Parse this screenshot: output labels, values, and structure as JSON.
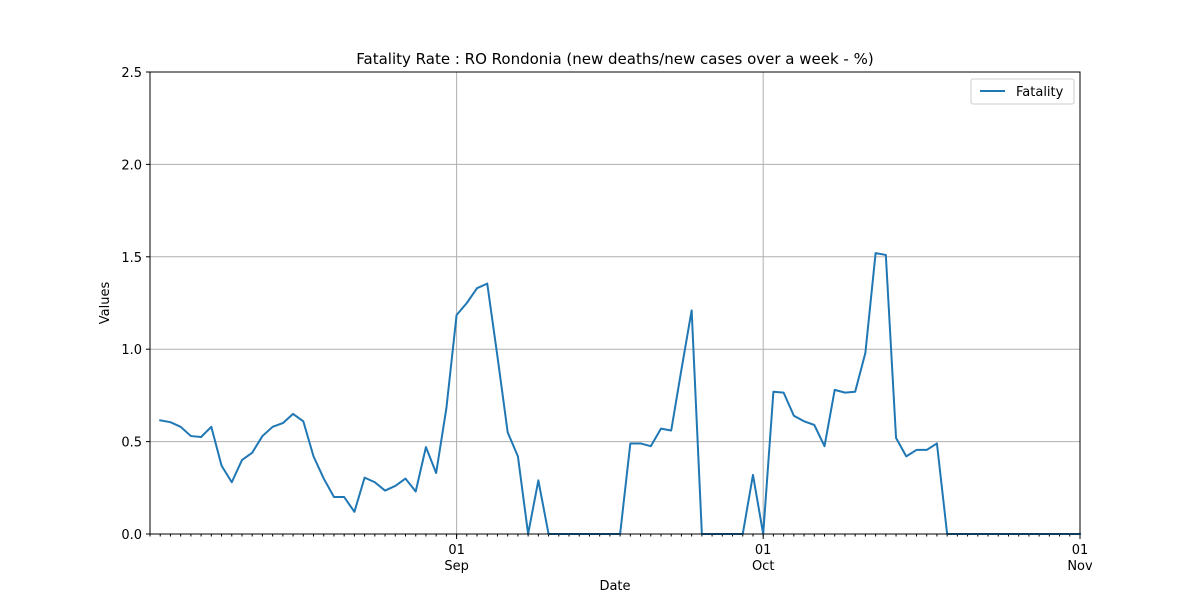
{
  "chart_data": {
    "type": "line",
    "title": "Fatality Rate : RO Rondonia (new deaths/new cases over a week - %)",
    "xlabel": "Date",
    "ylabel": "Values",
    "ylim": [
      0,
      2.5
    ],
    "xlim": [
      "2020-08-02",
      "2020-11-01"
    ],
    "yticks": [
      "0.0",
      "0.5",
      "1.0",
      "1.5",
      "2.0",
      "2.5"
    ],
    "xticks": [
      {
        "date": "2020-09-01",
        "day": "01",
        "month": "Sep"
      },
      {
        "date": "2020-10-01",
        "day": "01",
        "month": "Oct"
      },
      {
        "date": "2020-11-01",
        "day": "01",
        "month": "Nov"
      }
    ],
    "grid": true,
    "legend_position": "top-right",
    "series": [
      {
        "name": "Fatality",
        "color": "#1f77b4",
        "points": [
          [
            "2020-08-03",
            0.615
          ],
          [
            "2020-08-04",
            0.605
          ],
          [
            "2020-08-05",
            0.58
          ],
          [
            "2020-08-06",
            0.53
          ],
          [
            "2020-08-07",
            0.525
          ],
          [
            "2020-08-08",
            0.58
          ],
          [
            "2020-08-09",
            0.37
          ],
          [
            "2020-08-10",
            0.28
          ],
          [
            "2020-08-11",
            0.4
          ],
          [
            "2020-08-12",
            0.44
          ],
          [
            "2020-08-13",
            0.53
          ],
          [
            "2020-08-14",
            0.58
          ],
          [
            "2020-08-15",
            0.6
          ],
          [
            "2020-08-16",
            0.65
          ],
          [
            "2020-08-17",
            0.61
          ],
          [
            "2020-08-18",
            0.42
          ],
          [
            "2020-08-19",
            0.3
          ],
          [
            "2020-08-20",
            0.2
          ],
          [
            "2020-08-21",
            0.2
          ],
          [
            "2020-08-22",
            0.12
          ],
          [
            "2020-08-23",
            0.305
          ],
          [
            "2020-08-24",
            0.28
          ],
          [
            "2020-08-25",
            0.235
          ],
          [
            "2020-08-26",
            0.26
          ],
          [
            "2020-08-27",
            0.3
          ],
          [
            "2020-08-28",
            0.23
          ],
          [
            "2020-08-29",
            0.47
          ],
          [
            "2020-08-30",
            0.33
          ],
          [
            "2020-08-31",
            0.68
          ],
          [
            "2020-09-01",
            1.185
          ],
          [
            "2020-09-02",
            1.25
          ],
          [
            "2020-09-03",
            1.33
          ],
          [
            "2020-09-04",
            1.355
          ],
          [
            "2020-09-05",
            0.96
          ],
          [
            "2020-09-06",
            0.55
          ],
          [
            "2020-09-07",
            0.42
          ],
          [
            "2020-09-08",
            0.0
          ],
          [
            "2020-09-09",
            0.29
          ],
          [
            "2020-09-10",
            0.0
          ],
          [
            "2020-09-11",
            0.0
          ],
          [
            "2020-09-12",
            0.0
          ],
          [
            "2020-09-13",
            0.0
          ],
          [
            "2020-09-14",
            0.0
          ],
          [
            "2020-09-15",
            0.0
          ],
          [
            "2020-09-16",
            0.0
          ],
          [
            "2020-09-17",
            0.0
          ],
          [
            "2020-09-18",
            0.49
          ],
          [
            "2020-09-19",
            0.49
          ],
          [
            "2020-09-20",
            0.475
          ],
          [
            "2020-09-21",
            0.57
          ],
          [
            "2020-09-22",
            0.56
          ],
          [
            "2020-09-23",
            0.89
          ],
          [
            "2020-09-24",
            1.21
          ],
          [
            "2020-09-25",
            0.0
          ],
          [
            "2020-09-26",
            0.0
          ],
          [
            "2020-09-27",
            0.0
          ],
          [
            "2020-09-28",
            0.0
          ],
          [
            "2020-09-29",
            0.0
          ],
          [
            "2020-09-30",
            0.32
          ],
          [
            "2020-10-01",
            0.0
          ],
          [
            "2020-10-02",
            0.77
          ],
          [
            "2020-10-03",
            0.765
          ],
          [
            "2020-10-04",
            0.64
          ],
          [
            "2020-10-05",
            0.61
          ],
          [
            "2020-10-06",
            0.59
          ],
          [
            "2020-10-07",
            0.475
          ],
          [
            "2020-10-08",
            0.78
          ],
          [
            "2020-10-09",
            0.765
          ],
          [
            "2020-10-10",
            0.77
          ],
          [
            "2020-10-11",
            0.98
          ],
          [
            "2020-10-12",
            1.52
          ],
          [
            "2020-10-13",
            1.51
          ],
          [
            "2020-10-14",
            0.52
          ],
          [
            "2020-10-15",
            0.42
          ],
          [
            "2020-10-16",
            0.455
          ],
          [
            "2020-10-17",
            0.455
          ],
          [
            "2020-10-18",
            0.49
          ],
          [
            "2020-10-19",
            0.0
          ],
          [
            "2020-10-20",
            0.0
          ],
          [
            "2020-10-21",
            0.0
          ],
          [
            "2020-10-22",
            0.0
          ],
          [
            "2020-10-23",
            0.0
          ],
          [
            "2020-10-24",
            0.0
          ],
          [
            "2020-10-25",
            0.0
          ],
          [
            "2020-10-26",
            0.0
          ],
          [
            "2020-10-27",
            0.0
          ],
          [
            "2020-10-28",
            0.0
          ],
          [
            "2020-10-29",
            0.0
          ],
          [
            "2020-10-30",
            0.0
          ],
          [
            "2020-10-31",
            0.0
          ],
          [
            "2020-11-01",
            0.0
          ]
        ]
      }
    ]
  }
}
